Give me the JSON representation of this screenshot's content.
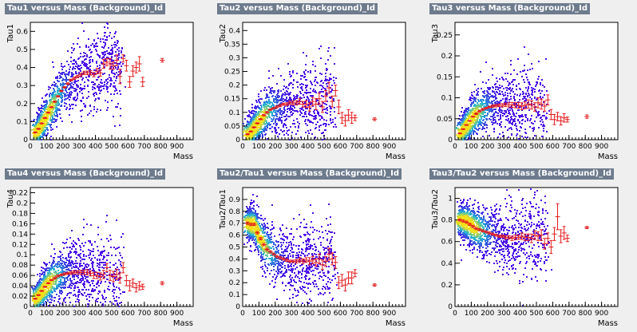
{
  "colors": {
    "background": "#efefef",
    "plot_background": "#ffffff",
    "title_bar": "#6d7b8d",
    "title_text": "#ffffff",
    "profile": "#e41a1c",
    "density_low": "#4b0fe8",
    "density_mid": "#1fb7d6",
    "density_high": "#f2e11a"
  },
  "chart_data": [
    {
      "type": "heatmap",
      "title": "Tau1 versus Mass (Background)_Id",
      "xlabel": "Mass",
      "ylabel": "Tau1",
      "xlim": [
        0,
        1000
      ],
      "ylim": [
        0,
        0.65
      ],
      "xticks": [
        "0",
        "100",
        "200",
        "300",
        "400",
        "500",
        "600",
        "700",
        "800",
        "900"
      ],
      "yticks": [
        "0",
        "0.1",
        "0.2",
        "0.3",
        "0.4",
        "0.5",
        "0.6"
      ],
      "grid": false,
      "legend": "none",
      "profile": {
        "x": [
          30,
          50,
          70,
          90,
          110,
          130,
          150,
          170,
          190,
          210,
          230,
          250,
          270,
          290,
          310,
          330,
          350,
          370,
          390,
          410,
          430,
          450,
          470,
          490,
          510,
          530,
          550,
          570,
          590,
          610,
          630,
          650,
          670,
          690,
          810
        ],
        "y": [
          0.04,
          0.06,
          0.09,
          0.12,
          0.15,
          0.18,
          0.21,
          0.24,
          0.27,
          0.29,
          0.31,
          0.33,
          0.34,
          0.35,
          0.36,
          0.37,
          0.37,
          0.37,
          0.36,
          0.38,
          0.37,
          0.42,
          0.43,
          0.42,
          0.41,
          0.44,
          0.35,
          0.45,
          0.41,
          0.32,
          0.38,
          0.4,
          0.42,
          0.32,
          0.44
        ],
        "err": [
          0.003,
          0.003,
          0.003,
          0.003,
          0.003,
          0.003,
          0.003,
          0.004,
          0.004,
          0.004,
          0.005,
          0.005,
          0.006,
          0.007,
          0.008,
          0.009,
          0.01,
          0.012,
          0.012,
          0.015,
          0.018,
          0.025,
          0.02,
          0.03,
          0.02,
          0.03,
          0.04,
          0.02,
          0.03,
          0.03,
          0.03,
          0.03,
          0.04,
          0.025,
          0.01
        ]
      }
    },
    {
      "type": "heatmap",
      "title": "Tau2 versus Mass (Background)_Id",
      "xlabel": "Mass",
      "ylabel": "Tau2",
      "xlim": [
        0,
        1000
      ],
      "ylim": [
        0,
        0.43
      ],
      "xticks": [
        "0",
        "100",
        "200",
        "300",
        "400",
        "500",
        "600",
        "700",
        "800",
        "900"
      ],
      "yticks": [
        "0",
        "0.05",
        "0.1",
        "0.15",
        "0.2",
        "0.25",
        "0.3",
        "0.35",
        "0.4"
      ],
      "grid": false,
      "legend": "none",
      "profile": {
        "x": [
          30,
          50,
          70,
          90,
          110,
          130,
          150,
          170,
          190,
          210,
          230,
          250,
          270,
          290,
          310,
          330,
          350,
          370,
          390,
          410,
          430,
          450,
          470,
          490,
          510,
          530,
          550,
          570,
          590,
          610,
          630,
          650,
          670,
          690,
          810
        ],
        "y": [
          0.02,
          0.03,
          0.045,
          0.06,
          0.075,
          0.09,
          0.1,
          0.11,
          0.115,
          0.12,
          0.125,
          0.13,
          0.13,
          0.135,
          0.135,
          0.135,
          0.14,
          0.13,
          0.13,
          0.12,
          0.14,
          0.13,
          0.15,
          0.12,
          0.16,
          0.19,
          0.14,
          0.18,
          0.12,
          0.08,
          0.07,
          0.09,
          0.08,
          0.08,
          0.075
        ],
        "err": [
          0.002,
          0.002,
          0.002,
          0.002,
          0.002,
          0.003,
          0.003,
          0.003,
          0.003,
          0.004,
          0.004,
          0.004,
          0.005,
          0.006,
          0.007,
          0.008,
          0.01,
          0.01,
          0.012,
          0.015,
          0.015,
          0.02,
          0.02,
          0.02,
          0.02,
          0.02,
          0.02,
          0.02,
          0.025,
          0.02,
          0.02,
          0.02,
          0.02,
          0.01,
          0.005
        ]
      }
    },
    {
      "type": "heatmap",
      "title": "Tau3 versus Mass (Background)_Id",
      "xlabel": "Mass",
      "ylabel": "Tau3",
      "xlim": [
        0,
        1000
      ],
      "ylim": [
        0,
        0.28
      ],
      "xticks": [
        "0",
        "100",
        "200",
        "300",
        "400",
        "500",
        "600",
        "700",
        "800",
        "900"
      ],
      "yticks": [
        "0",
        "0.05",
        "0.1",
        "0.15",
        "0.2",
        "0.25"
      ],
      "grid": false,
      "legend": "none",
      "profile": {
        "x": [
          30,
          50,
          70,
          90,
          110,
          130,
          150,
          170,
          190,
          210,
          230,
          250,
          270,
          290,
          310,
          330,
          350,
          370,
          390,
          410,
          430,
          450,
          470,
          490,
          510,
          530,
          550,
          570,
          590,
          610,
          630,
          650,
          670,
          690,
          810
        ],
        "y": [
          0.015,
          0.025,
          0.035,
          0.045,
          0.055,
          0.062,
          0.068,
          0.072,
          0.075,
          0.078,
          0.08,
          0.081,
          0.082,
          0.082,
          0.083,
          0.083,
          0.083,
          0.082,
          0.082,
          0.08,
          0.082,
          0.085,
          0.083,
          0.078,
          0.088,
          0.085,
          0.08,
          0.095,
          0.06,
          0.048,
          0.055,
          0.045,
          0.052,
          0.048,
          0.055
        ],
        "err": [
          0.001,
          0.001,
          0.001,
          0.001,
          0.001,
          0.002,
          0.002,
          0.002,
          0.002,
          0.002,
          0.003,
          0.003,
          0.003,
          0.004,
          0.004,
          0.005,
          0.006,
          0.006,
          0.007,
          0.008,
          0.008,
          0.01,
          0.01,
          0.01,
          0.012,
          0.012,
          0.012,
          0.012,
          0.012,
          0.012,
          0.01,
          0.01,
          0.01,
          0.006,
          0.004
        ]
      }
    },
    {
      "type": "heatmap",
      "title": "Tau4 versus Mass (Background)_Id",
      "xlabel": "Mass",
      "ylabel": "Tau4",
      "xlim": [
        0,
        1000
      ],
      "ylim": [
        0,
        0.23
      ],
      "xticks": [
        "0",
        "100",
        "200",
        "300",
        "400",
        "500",
        "600",
        "700",
        "800",
        "900"
      ],
      "yticks": [
        "0",
        "0.02",
        "0.04",
        "0.06",
        "0.08",
        "0.1",
        "0.12",
        "0.14",
        "0.16",
        "0.18",
        "0.2",
        "0.22"
      ],
      "grid": false,
      "legend": "none",
      "profile": {
        "x": [
          30,
          50,
          70,
          90,
          110,
          130,
          150,
          170,
          190,
          210,
          230,
          250,
          270,
          290,
          310,
          330,
          350,
          370,
          390,
          410,
          430,
          450,
          470,
          490,
          510,
          530,
          550,
          570,
          590,
          610,
          630,
          650,
          670,
          690,
          810
        ],
        "y": [
          0.015,
          0.022,
          0.03,
          0.038,
          0.045,
          0.051,
          0.055,
          0.059,
          0.061,
          0.063,
          0.064,
          0.065,
          0.066,
          0.066,
          0.066,
          0.066,
          0.066,
          0.064,
          0.06,
          0.06,
          0.058,
          0.062,
          0.075,
          0.06,
          0.058,
          0.062,
          0.055,
          0.075,
          0.05,
          0.04,
          0.045,
          0.036,
          0.04,
          0.038,
          0.045
        ],
        "err": [
          0.001,
          0.001,
          0.001,
          0.001,
          0.001,
          0.001,
          0.002,
          0.002,
          0.002,
          0.002,
          0.002,
          0.003,
          0.003,
          0.003,
          0.004,
          0.004,
          0.005,
          0.005,
          0.006,
          0.006,
          0.007,
          0.008,
          0.008,
          0.01,
          0.01,
          0.01,
          0.01,
          0.01,
          0.01,
          0.01,
          0.008,
          0.008,
          0.008,
          0.005,
          0.003
        ]
      }
    },
    {
      "type": "heatmap",
      "title": "Tau2/Tau1 versus Mass (Background)_Id",
      "xlabel": "Mass",
      "ylabel": "Tau2/Tau1",
      "xlim": [
        0,
        1000
      ],
      "ylim": [
        0,
        1.0
      ],
      "xticks": [
        "0",
        "100",
        "200",
        "300",
        "400",
        "500",
        "600",
        "700",
        "800",
        "900"
      ],
      "yticks": [
        "0",
        "0.1",
        "0.2",
        "0.3",
        "0.4",
        "0.5",
        "0.6",
        "0.7",
        "0.8",
        "0.9"
      ],
      "grid": false,
      "legend": "none",
      "profile": {
        "x": [
          30,
          50,
          70,
          90,
          110,
          130,
          150,
          170,
          190,
          210,
          230,
          250,
          270,
          290,
          310,
          330,
          350,
          370,
          390,
          410,
          430,
          450,
          470,
          490,
          510,
          530,
          550,
          570,
          590,
          610,
          630,
          650,
          670,
          690,
          810
        ],
        "y": [
          0.7,
          0.69,
          0.69,
          0.62,
          0.57,
          0.52,
          0.48,
          0.46,
          0.44,
          0.42,
          0.41,
          0.4,
          0.39,
          0.38,
          0.38,
          0.38,
          0.39,
          0.38,
          0.39,
          0.38,
          0.39,
          0.37,
          0.4,
          0.35,
          0.38,
          0.44,
          0.4,
          0.37,
          0.2,
          0.22,
          0.18,
          0.24,
          0.24,
          0.28,
          0.18
        ],
        "err": [
          0.01,
          0.01,
          0.01,
          0.01,
          0.01,
          0.01,
          0.01,
          0.01,
          0.01,
          0.01,
          0.01,
          0.01,
          0.01,
          0.01,
          0.01,
          0.015,
          0.02,
          0.02,
          0.02,
          0.03,
          0.03,
          0.03,
          0.04,
          0.04,
          0.04,
          0.05,
          0.05,
          0.05,
          0.05,
          0.05,
          0.05,
          0.05,
          0.05,
          0.03,
          0.01
        ]
      }
    },
    {
      "type": "heatmap",
      "title": "Tau3/Tau2 versus Mass (Background)_Id",
      "xlabel": "Mass",
      "ylabel": "Tau3/Tau2",
      "xlim": [
        0,
        1000
      ],
      "ylim": [
        0,
        1.1
      ],
      "xticks": [
        "0",
        "100",
        "200",
        "300",
        "400",
        "500",
        "600",
        "700",
        "800",
        "900"
      ],
      "yticks": [
        "0",
        "0.2",
        "0.4",
        "0.6",
        "0.8",
        "1"
      ],
      "grid": false,
      "legend": "none",
      "profile": {
        "x": [
          30,
          50,
          70,
          90,
          110,
          130,
          150,
          170,
          190,
          210,
          230,
          250,
          270,
          290,
          310,
          330,
          350,
          370,
          390,
          410,
          430,
          450,
          470,
          490,
          510,
          530,
          550,
          570,
          590,
          610,
          630,
          650,
          670,
          690,
          810
        ],
        "y": [
          0.8,
          0.79,
          0.78,
          0.76,
          0.74,
          0.72,
          0.71,
          0.7,
          0.69,
          0.68,
          0.67,
          0.66,
          0.65,
          0.65,
          0.64,
          0.64,
          0.63,
          0.64,
          0.64,
          0.65,
          0.64,
          0.64,
          0.63,
          0.66,
          0.65,
          0.66,
          0.58,
          0.63,
          0.55,
          0.67,
          0.83,
          0.65,
          0.68,
          0.63,
          0.73
        ],
        "err": [
          0.01,
          0.01,
          0.01,
          0.01,
          0.01,
          0.01,
          0.01,
          0.01,
          0.01,
          0.01,
          0.01,
          0.01,
          0.01,
          0.01,
          0.015,
          0.015,
          0.02,
          0.02,
          0.02,
          0.03,
          0.03,
          0.03,
          0.04,
          0.04,
          0.04,
          0.05,
          0.05,
          0.05,
          0.06,
          0.06,
          0.12,
          0.06,
          0.06,
          0.03,
          0.01
        ]
      }
    }
  ]
}
